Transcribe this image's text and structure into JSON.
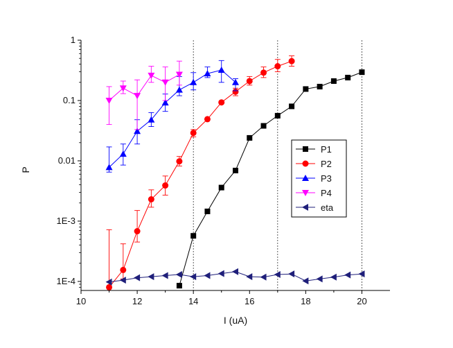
{
  "chart_data": {
    "type": "scatter",
    "title": "",
    "xlabel": "I (uA)",
    "ylabel": "P",
    "xlim": [
      10,
      21
    ],
    "ylim_log10": [
      -4.15,
      0
    ],
    "y_scale": "log",
    "x_ticks": [
      10,
      12,
      14,
      16,
      18,
      20
    ],
    "y_ticks": [
      {
        "value": 0.0001,
        "label": "1E-4"
      },
      {
        "value": 0.001,
        "label": "1E-3"
      },
      {
        "value": 0.01,
        "label": "0.01"
      },
      {
        "value": 0.1,
        "label": "0.1"
      },
      {
        "value": 1,
        "label": "1"
      }
    ],
    "reference_lines_x": [
      14,
      17,
      20
    ],
    "legend_position": "center-right",
    "series": [
      {
        "name": "P1",
        "color": "#000000",
        "marker": "square",
        "x": [
          13.5,
          14,
          14.5,
          15,
          15.5,
          16,
          16.5,
          17,
          17.5,
          18,
          18.5,
          19,
          19.5,
          20
        ],
        "y": [
          8.5e-05,
          0.00057,
          0.00145,
          0.0036,
          0.0069,
          0.024,
          0.038,
          0.056,
          0.08,
          0.155,
          0.17,
          0.21,
          0.24,
          0.295
        ],
        "err_hi": [
          null,
          null,
          null,
          null,
          null,
          null,
          null,
          null,
          null,
          null,
          null,
          null,
          null,
          0.31
        ],
        "err_lo": [
          null,
          null,
          null,
          null,
          null,
          null,
          null,
          null,
          null,
          null,
          null,
          null,
          null,
          0.28
        ]
      },
      {
        "name": "P2",
        "color": "#ff0000",
        "marker": "circle",
        "x": [
          11,
          11.5,
          12,
          12.5,
          13,
          13.5,
          14,
          14.5,
          15,
          15.5,
          16,
          16.5,
          17,
          17.5
        ],
        "y": [
          8e-05,
          0.000155,
          0.00068,
          0.0023,
          0.0039,
          0.0098,
          0.029,
          0.049,
          0.093,
          0.14,
          0.21,
          0.29,
          0.37,
          0.45
        ],
        "err_hi": [
          0.00072,
          0.00042,
          0.0015,
          0.0033,
          0.0056,
          0.0118,
          0.033,
          null,
          null,
          0.16,
          0.25,
          0.36,
          0.48,
          0.55
        ],
        "err_lo": [
          6e-05,
          0.00011,
          0.00045,
          0.0017,
          0.0027,
          0.0082,
          0.025,
          null,
          null,
          0.12,
          0.18,
          0.24,
          0.3,
          0.37
        ]
      },
      {
        "name": "P3",
        "color": "#0000ff",
        "marker": "triangle-up",
        "x": [
          11,
          11.5,
          12,
          12.5,
          13,
          13.5,
          14,
          14.5,
          15,
          15.5
        ],
        "y": [
          0.0078,
          0.013,
          0.031,
          0.048,
          0.092,
          0.15,
          0.2,
          0.28,
          0.32,
          0.2
        ],
        "err_hi": [
          0.017,
          0.019,
          0.048,
          0.063,
          0.128,
          0.25,
          0.29,
          0.36,
          0.46,
          0.23
        ],
        "err_lo": [
          0.0065,
          0.0085,
          0.019,
          0.037,
          0.066,
          0.12,
          0.15,
          0.24,
          0.2,
          0.145
        ]
      },
      {
        "name": "P4",
        "color": "#ff00ff",
        "marker": "triangle-down",
        "x": [
          11,
          11.5,
          12,
          12.5,
          13,
          13.5
        ],
        "y": [
          0.1,
          0.16,
          0.12,
          0.26,
          0.2,
          0.27
        ],
        "err_hi": [
          0.17,
          0.21,
          0.22,
          0.37,
          0.36,
          0.45
        ],
        "err_lo": [
          0.04,
          0.13,
          0.033,
          0.2,
          0.1,
          0.18
        ]
      },
      {
        "name": "eta",
        "color": "#1f1f7a",
        "marker": "triangle-left",
        "x": [
          11,
          11.5,
          12,
          12.5,
          13,
          13.5,
          14,
          14.5,
          15,
          15.5,
          16,
          16.5,
          17,
          17.5,
          18,
          18.5,
          19,
          19.5,
          20
        ],
        "y": [
          9.8e-05,
          0.000105,
          0.000115,
          0.00012,
          0.000125,
          0.00013,
          0.00012,
          0.000125,
          0.000135,
          0.000145,
          0.00012,
          0.000118,
          0.00013,
          0.000133,
          0.000102,
          0.00011,
          0.000118,
          0.000128,
          0.000133
        ],
        "err_hi": [],
        "err_lo": []
      }
    ]
  }
}
